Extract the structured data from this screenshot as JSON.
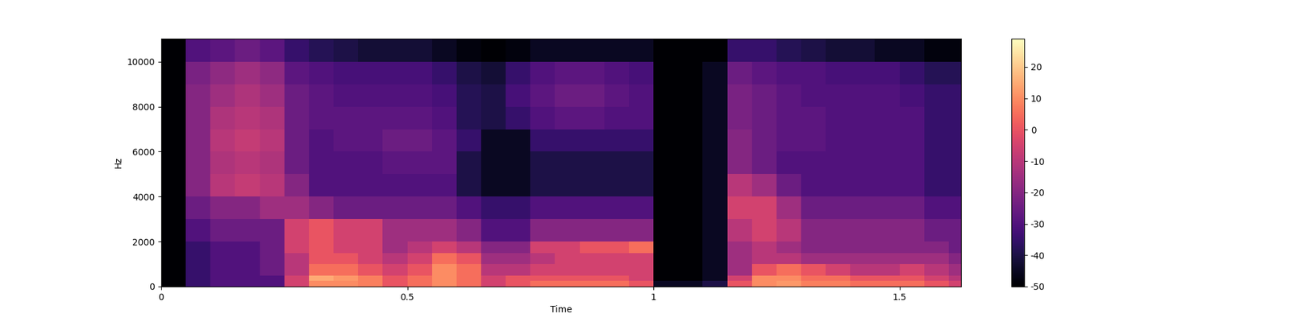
{
  "chart_data": {
    "type": "heatmap",
    "xlabel": "Time",
    "ylabel": "Hz",
    "xlim": [
      0,
      1.625
    ],
    "ylim": [
      0,
      11025
    ],
    "xticks": [
      0,
      0.5,
      1,
      1.5
    ],
    "yticks": [
      0,
      2000,
      4000,
      6000,
      8000,
      10000
    ],
    "color_range": [
      -50,
      29
    ],
    "color_ticks": [
      -50,
      -40,
      -30,
      -20,
      -10,
      0,
      10,
      20
    ],
    "time_edges": [
      0,
      0.05,
      0.1,
      0.15,
      0.2,
      0.25,
      0.3,
      0.35,
      0.4,
      0.45,
      0.5,
      0.55,
      0.6,
      0.65,
      0.7,
      0.75,
      0.8,
      0.85,
      0.9,
      0.95,
      1.0,
      1.05,
      1.1,
      1.15,
      1.2,
      1.25,
      1.3,
      1.35,
      1.4,
      1.45,
      1.5,
      1.55,
      1.6,
      1.625
    ],
    "freq_edges": [
      0,
      250,
      500,
      1000,
      1500,
      2000,
      3000,
      4000,
      5000,
      6000,
      7000,
      8000,
      9000,
      10000,
      11025
    ],
    "cells": [
      [
        -50,
        -35,
        -30,
        -30,
        -30,
        -5,
        10,
        10,
        8,
        0,
        5,
        10,
        5,
        -5,
        0,
        5,
        5,
        5,
        5,
        0,
        -45,
        -45,
        -40,
        0,
        10,
        12,
        8,
        8,
        5,
        5,
        5,
        0,
        -5
      ],
      [
        -50,
        -35,
        -30,
        -30,
        -30,
        -5,
        15,
        12,
        8,
        0,
        5,
        10,
        5,
        -5,
        0,
        0,
        0,
        0,
        0,
        -5,
        -50,
        -50,
        -45,
        -5,
        10,
        10,
        5,
        5,
        0,
        0,
        0,
        -5,
        -10
      ],
      [
        -50,
        -35,
        -30,
        -30,
        -25,
        -10,
        5,
        5,
        0,
        -5,
        0,
        10,
        5,
        -10,
        -10,
        -5,
        -5,
        -5,
        -5,
        -5,
        -50,
        -50,
        -45,
        -15,
        0,
        5,
        0,
        -5,
        -10,
        -10,
        -5,
        -10,
        -15
      ],
      [
        -50,
        -35,
        -30,
        -30,
        -25,
        -10,
        0,
        0,
        -5,
        -10,
        -5,
        5,
        0,
        -15,
        -15,
        -10,
        -5,
        -5,
        -5,
        -5,
        -50,
        -50,
        -45,
        -15,
        -10,
        -10,
        -15,
        -15,
        -15,
        -15,
        -15,
        -15,
        -20
      ],
      [
        -50,
        -35,
        -30,
        -30,
        -25,
        -5,
        0,
        -5,
        -5,
        -15,
        -10,
        -5,
        -10,
        -20,
        -20,
        -5,
        -5,
        0,
        0,
        5,
        -50,
        -50,
        -45,
        -15,
        -10,
        -15,
        -20,
        -20,
        -20,
        -20,
        -20,
        -20,
        -25
      ],
      [
        -50,
        -30,
        -25,
        -25,
        -25,
        -5,
        0,
        -5,
        -5,
        -15,
        -15,
        -15,
        -20,
        -30,
        -30,
        -20,
        -20,
        -20,
        -20,
        -20,
        -50,
        -50,
        -45,
        -10,
        -5,
        -10,
        -20,
        -20,
        -20,
        -20,
        -20,
        -25,
        -25
      ],
      [
        -50,
        -25,
        -20,
        -20,
        -15,
        -15,
        -20,
        -25,
        -25,
        -25,
        -25,
        -25,
        -30,
        -35,
        -35,
        -30,
        -30,
        -30,
        -30,
        -30,
        -50,
        -50,
        -45,
        -5,
        -5,
        -15,
        -25,
        -25,
        -25,
        -25,
        -25,
        -30,
        -30
      ],
      [
        -50,
        -20,
        -10,
        -8,
        -10,
        -20,
        -30,
        -30,
        -30,
        -30,
        -30,
        -30,
        -40,
        -45,
        -45,
        -40,
        -40,
        -40,
        -40,
        -40,
        -50,
        -50,
        -45,
        -10,
        -15,
        -25,
        -30,
        -30,
        -30,
        -30,
        -30,
        -35,
        -35
      ],
      [
        -50,
        -20,
        -12,
        -10,
        -12,
        -25,
        -30,
        -30,
        -30,
        -28,
        -28,
        -28,
        -40,
        -45,
        -45,
        -40,
        -40,
        -40,
        -40,
        -40,
        -50,
        -50,
        -45,
        -20,
        -25,
        -30,
        -30,
        -30,
        -30,
        -30,
        -30,
        -35,
        -35
      ],
      [
        -50,
        -20,
        -10,
        -8,
        -10,
        -25,
        -30,
        -28,
        -28,
        -25,
        -25,
        -28,
        -35,
        -45,
        -45,
        -35,
        -35,
        -35,
        -35,
        -35,
        -50,
        -50,
        -45,
        -20,
        -25,
        -28,
        -28,
        -30,
        -30,
        -30,
        -30,
        -35,
        -35
      ],
      [
        -50,
        -20,
        -12,
        -10,
        -12,
        -25,
        -28,
        -28,
        -28,
        -28,
        -28,
        -30,
        -38,
        -40,
        -35,
        -30,
        -28,
        -28,
        -30,
        -30,
        -50,
        -50,
        -45,
        -22,
        -25,
        -28,
        -28,
        -30,
        -30,
        -30,
        -30,
        -35,
        -35
      ],
      [
        -50,
        -20,
        -15,
        -12,
        -15,
        -25,
        -28,
        -30,
        -30,
        -30,
        -30,
        -32,
        -38,
        -40,
        -32,
        -28,
        -25,
        -25,
        -28,
        -30,
        -50,
        -50,
        -45,
        -22,
        -25,
        -28,
        -30,
        -30,
        -30,
        -30,
        -32,
        -35,
        -35
      ],
      [
        -50,
        -22,
        -18,
        -15,
        -18,
        -28,
        -30,
        -32,
        -32,
        -32,
        -32,
        -35,
        -40,
        -42,
        -35,
        -30,
        -28,
        -28,
        -30,
        -32,
        -50,
        -50,
        -45,
        -25,
        -28,
        -30,
        -30,
        -32,
        -32,
        -32,
        -35,
        -38,
        -38
      ],
      [
        -50,
        -30,
        -28,
        -25,
        -28,
        -35,
        -38,
        -40,
        -42,
        -42,
        -42,
        -45,
        -48,
        -50,
        -48,
        -45,
        -45,
        -45,
        -45,
        -45,
        -50,
        -50,
        -50,
        -35,
        -35,
        -38,
        -40,
        -42,
        -42,
        -45,
        -45,
        -48,
        -48
      ]
    ]
  }
}
